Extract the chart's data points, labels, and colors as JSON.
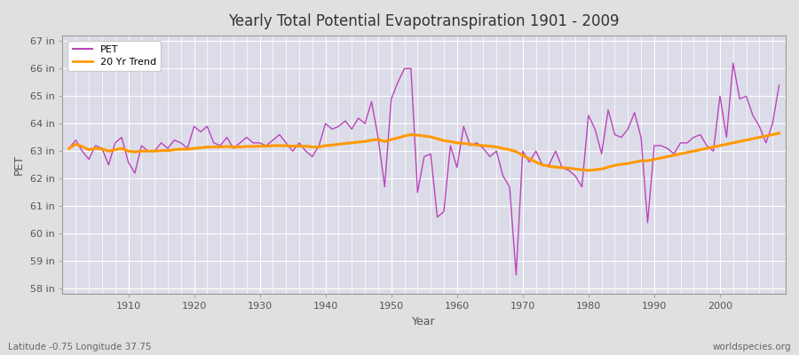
{
  "title": "Yearly Total Potential Evapotranspiration 1901 - 2009",
  "xlabel": "Year",
  "ylabel": "PET",
  "subtitle": "Latitude -0.75 Longitude 37.75",
  "watermark": "worldspecies.org",
  "ylim": [
    57.8,
    67.2
  ],
  "yticks": [
    58,
    59,
    60,
    61,
    62,
    63,
    64,
    65,
    66,
    67
  ],
  "ytick_labels": [
    "58 in",
    "59 in",
    "60 in",
    "61 in",
    "62 in",
    "63 in",
    "64 in",
    "65 in",
    "66 in",
    "67 in"
  ],
  "xticks": [
    1910,
    1920,
    1930,
    1940,
    1950,
    1960,
    1970,
    1980,
    1990,
    2000
  ],
  "pet_color": "#bb44bb",
  "trend_color": "#ff9900",
  "bg_color": "#e0e0e0",
  "plot_bg_color": "#dcdce8",
  "grid_color": "#ffffff",
  "years": [
    1901,
    1902,
    1903,
    1904,
    1905,
    1906,
    1907,
    1908,
    1909,
    1910,
    1911,
    1912,
    1913,
    1914,
    1915,
    1916,
    1917,
    1918,
    1919,
    1920,
    1921,
    1922,
    1923,
    1924,
    1925,
    1926,
    1927,
    1928,
    1929,
    1930,
    1931,
    1932,
    1933,
    1934,
    1935,
    1936,
    1937,
    1938,
    1939,
    1940,
    1941,
    1942,
    1943,
    1944,
    1945,
    1946,
    1947,
    1948,
    1949,
    1950,
    1951,
    1952,
    1953,
    1954,
    1955,
    1956,
    1957,
    1958,
    1959,
    1960,
    1961,
    1962,
    1963,
    1964,
    1965,
    1966,
    1967,
    1968,
    1969,
    1970,
    1971,
    1972,
    1973,
    1974,
    1975,
    1976,
    1977,
    1978,
    1979,
    1980,
    1981,
    1982,
    1983,
    1984,
    1985,
    1986,
    1987,
    1988,
    1989,
    1990,
    1991,
    1992,
    1993,
    1994,
    1995,
    1996,
    1997,
    1998,
    1999,
    2000,
    2001,
    2002,
    2003,
    2004,
    2005,
    2006,
    2007,
    2008,
    2009
  ],
  "pet_values": [
    63.1,
    63.4,
    63.0,
    62.7,
    63.2,
    63.1,
    62.5,
    63.3,
    63.5,
    62.6,
    62.2,
    63.2,
    63.0,
    63.0,
    63.3,
    63.1,
    63.4,
    63.3,
    63.1,
    63.9,
    63.7,
    63.9,
    63.3,
    63.2,
    63.5,
    63.1,
    63.3,
    63.5,
    63.3,
    63.3,
    63.2,
    63.4,
    63.6,
    63.3,
    63.0,
    63.3,
    63.0,
    62.8,
    63.2,
    64.0,
    63.8,
    63.9,
    64.1,
    63.8,
    64.2,
    64.0,
    64.8,
    63.5,
    61.7,
    64.9,
    65.5,
    66.0,
    66.0,
    61.5,
    62.8,
    62.9,
    60.6,
    60.8,
    63.2,
    62.4,
    63.9,
    63.2,
    63.3,
    63.1,
    62.8,
    63.0,
    62.1,
    61.7,
    58.5,
    63.0,
    62.6,
    63.0,
    62.5,
    62.5,
    63.0,
    62.4,
    62.3,
    62.1,
    61.7,
    64.3,
    63.8,
    62.9,
    64.5,
    63.6,
    63.5,
    63.8,
    64.4,
    63.5,
    60.4,
    63.2,
    63.2,
    63.1,
    62.9,
    63.3,
    63.3,
    63.5,
    63.6,
    63.2,
    63.0,
    65.0,
    63.5,
    66.2,
    64.9,
    65.0,
    64.3,
    63.9,
    63.3,
    64.0,
    65.4
  ],
  "trend_values": [
    63.1,
    63.25,
    63.17,
    63.05,
    63.1,
    63.08,
    63.0,
    63.05,
    63.1,
    63.0,
    62.97,
    63.0,
    63.0,
    63.0,
    63.02,
    63.02,
    63.05,
    63.07,
    63.07,
    63.1,
    63.12,
    63.15,
    63.15,
    63.15,
    63.17,
    63.15,
    63.15,
    63.17,
    63.17,
    63.18,
    63.18,
    63.2,
    63.2,
    63.2,
    63.18,
    63.18,
    63.18,
    63.15,
    63.15,
    63.2,
    63.22,
    63.25,
    63.28,
    63.3,
    63.33,
    63.35,
    63.4,
    63.42,
    63.35,
    63.42,
    63.48,
    63.55,
    63.6,
    63.58,
    63.55,
    63.52,
    63.45,
    63.38,
    63.35,
    63.3,
    63.28,
    63.25,
    63.22,
    63.2,
    63.18,
    63.15,
    63.1,
    63.05,
    62.98,
    62.85,
    62.72,
    62.6,
    62.5,
    62.45,
    62.42,
    62.4,
    62.38,
    62.35,
    62.32,
    62.3,
    62.32,
    62.35,
    62.42,
    62.48,
    62.52,
    62.55,
    62.6,
    62.65,
    62.65,
    62.7,
    62.75,
    62.8,
    62.85,
    62.9,
    62.95,
    63.0,
    63.05,
    63.1,
    63.15,
    63.2,
    63.25,
    63.3,
    63.35,
    63.4,
    63.45,
    63.5,
    63.55,
    63.6,
    63.65
  ],
  "legend_pet_label": "PET",
  "legend_trend_label": "20 Yr Trend"
}
